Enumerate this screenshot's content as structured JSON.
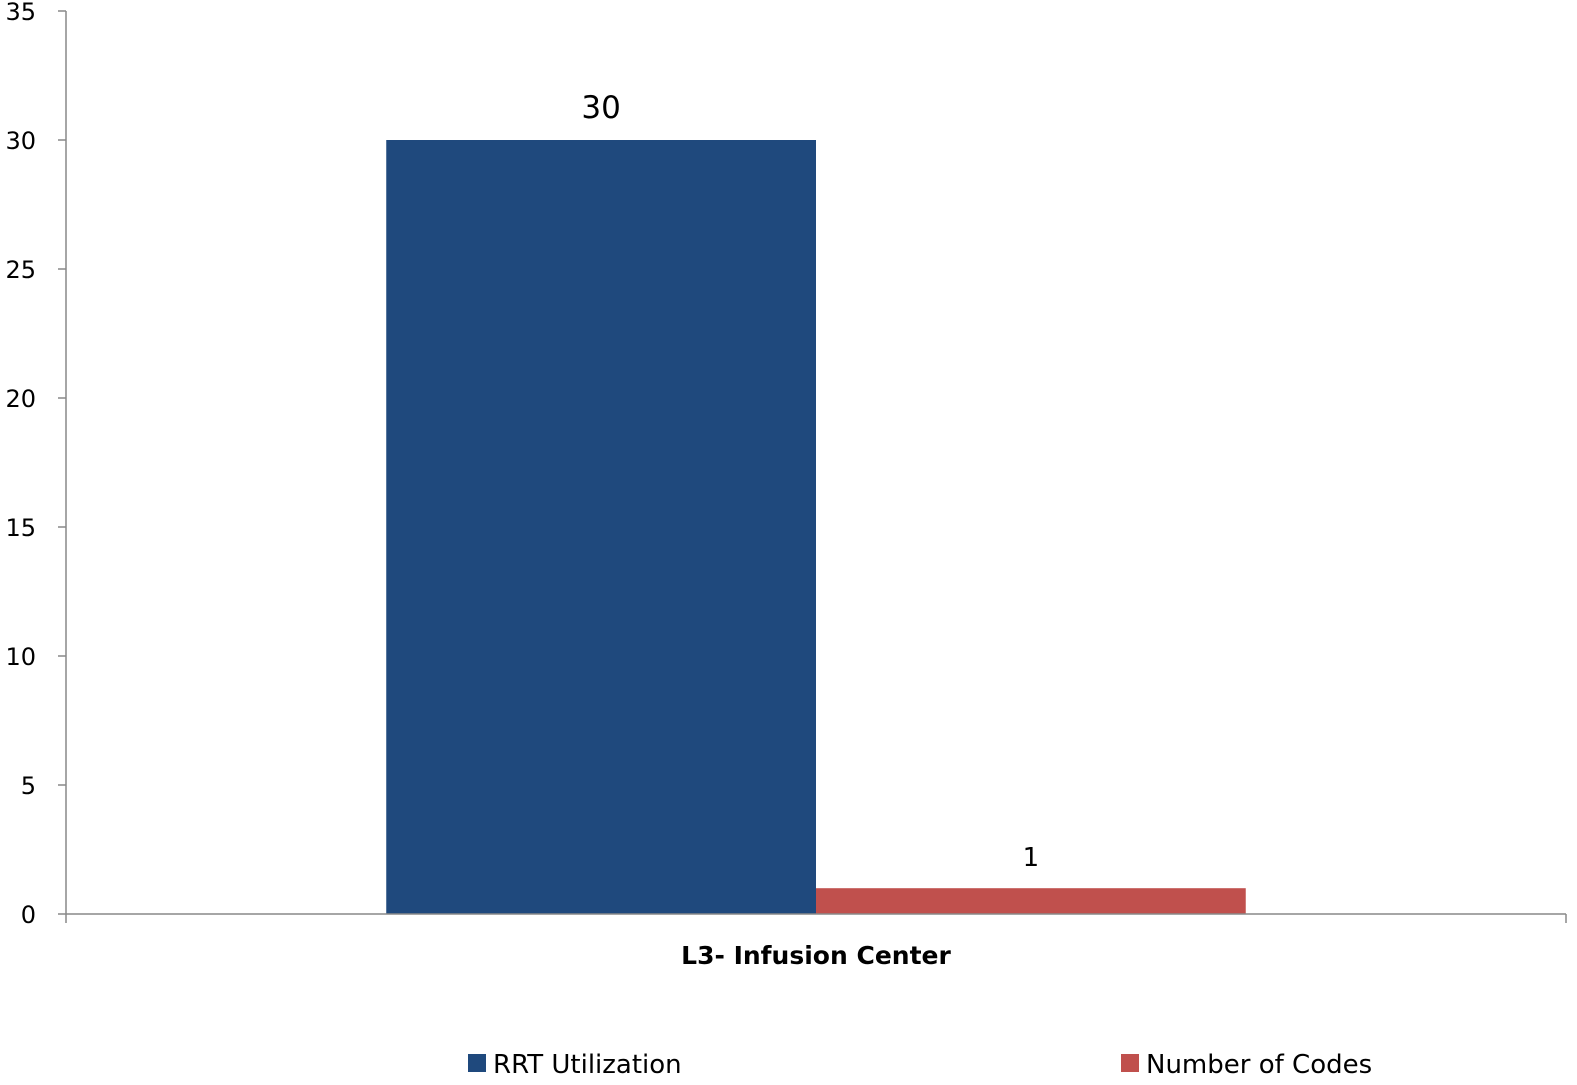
{
  "chart_data": {
    "type": "bar",
    "categories": [
      "L3- Infusion Center"
    ],
    "series": [
      {
        "name": "RRT Utilization",
        "values": [
          30
        ],
        "color": "#1F497D"
      },
      {
        "name": "Number of Codes",
        "values": [
          1
        ],
        "color": "#C0504D"
      }
    ],
    "yticks": [
      "0",
      "5",
      "10",
      "15",
      "20",
      "25",
      "30",
      "35"
    ],
    "ylim": [
      0,
      35
    ],
    "grid": false,
    "legend_position": "bottom"
  }
}
